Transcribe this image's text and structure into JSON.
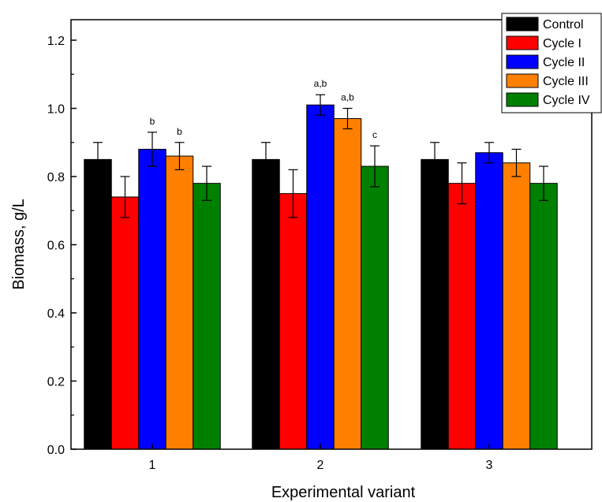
{
  "chart_data": {
    "type": "bar",
    "title": "",
    "xlabel": "Experimental variant",
    "ylabel": "Biomass, g/L",
    "ylim": [
      0,
      1.2
    ],
    "yticks": [
      "0.0",
      "0.2",
      "0.4",
      "0.6",
      "0.8",
      "1.0",
      "1.2"
    ],
    "categories": [
      "1",
      "2",
      "3"
    ],
    "grid": false,
    "legend_position": "top-right",
    "series": [
      {
        "name": "Control",
        "color": "#000000",
        "values": [
          0.85,
          0.85,
          0.85
        ],
        "errors": [
          0.05,
          0.05,
          0.05
        ],
        "annotations": [
          "",
          "",
          ""
        ]
      },
      {
        "name": "Cycle I",
        "color": "#ff0000",
        "values": [
          0.74,
          0.75,
          0.78
        ],
        "errors": [
          0.06,
          0.07,
          0.06
        ],
        "annotations": [
          "",
          "",
          ""
        ]
      },
      {
        "name": "Cycle II",
        "color": "#0000ff",
        "values": [
          0.88,
          1.01,
          0.87
        ],
        "errors": [
          0.05,
          0.03,
          0.03
        ],
        "annotations": [
          "b",
          "a,b",
          ""
        ]
      },
      {
        "name": "Cycle III",
        "color": "#ff8000",
        "values": [
          0.86,
          0.97,
          0.84
        ],
        "errors": [
          0.04,
          0.03,
          0.04
        ],
        "annotations": [
          "b",
          "a,b",
          ""
        ]
      },
      {
        "name": "Cycle IV",
        "color": "#008000",
        "values": [
          0.78,
          0.83,
          0.78
        ],
        "errors": [
          0.05,
          0.06,
          0.05
        ],
        "annotations": [
          "",
          "c",
          ""
        ]
      }
    ]
  }
}
